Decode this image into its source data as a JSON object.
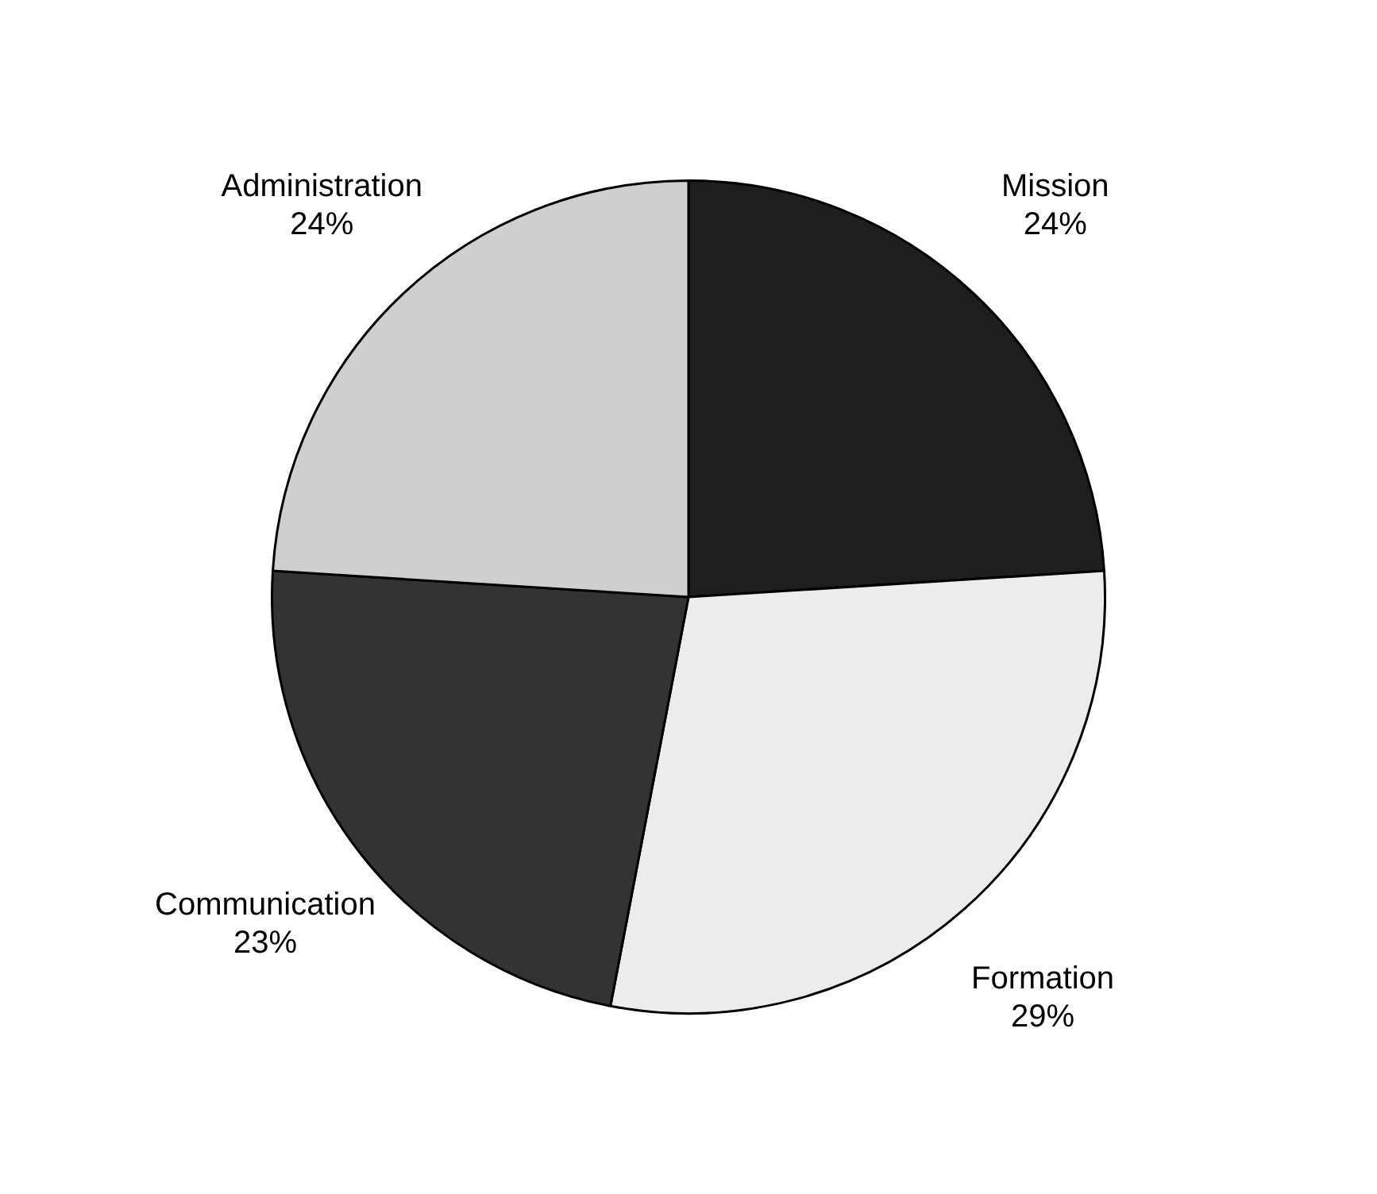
{
  "chart_data": {
    "type": "pie",
    "categories": [
      "Mission",
      "Formation",
      "Communication",
      "Administration"
    ],
    "values": [
      24,
      29,
      23,
      24
    ],
    "value_labels": [
      "24%",
      "29%",
      "23%",
      "24%"
    ],
    "colors": [
      "#1e1e1e",
      "#ececec",
      "#333333",
      "#cfcfcf"
    ],
    "legend": false
  }
}
